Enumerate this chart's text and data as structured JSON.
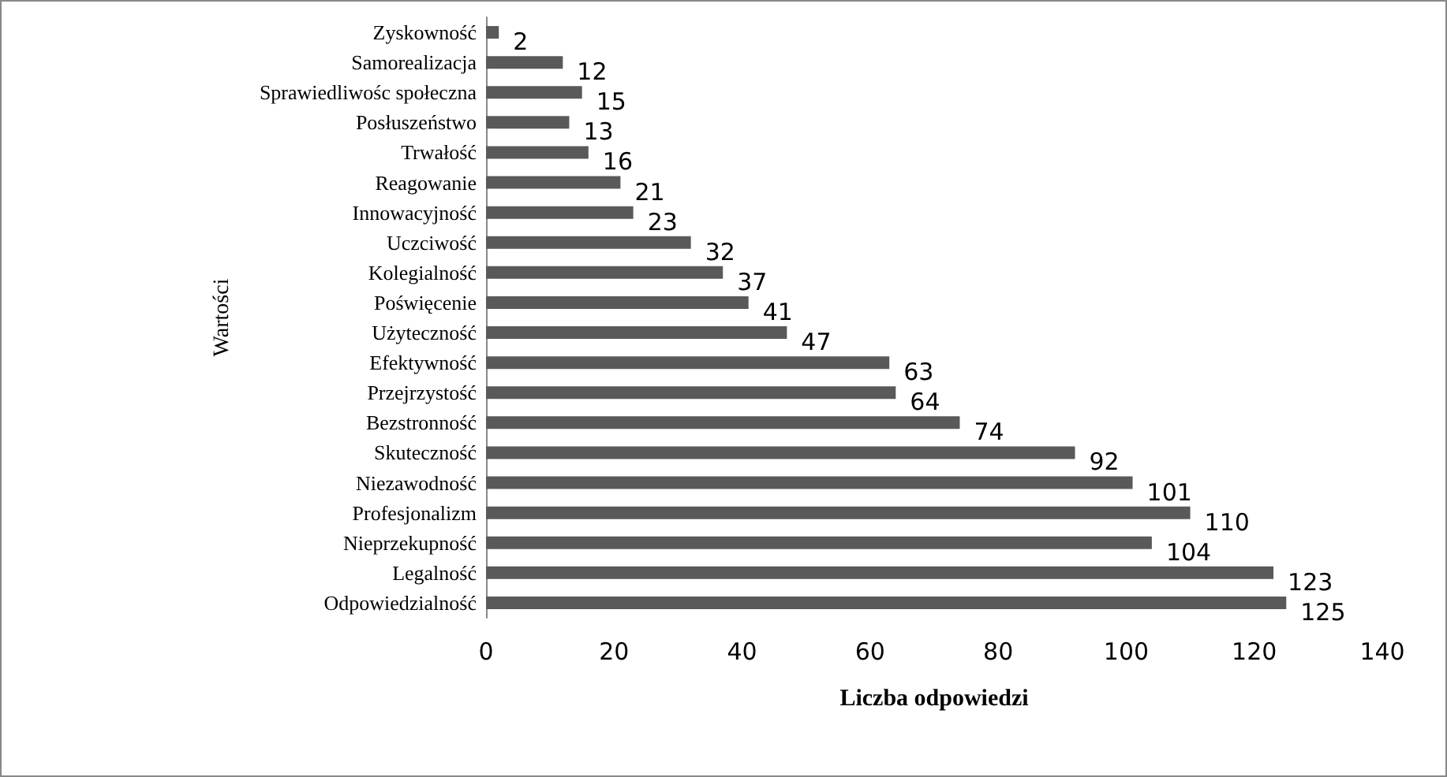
{
  "chart_data": {
    "type": "bar",
    "orientation": "horizontal",
    "xlabel": "Liczba odpowiedzi",
    "ylabel": "Wartości",
    "categories": [
      "Zyskowność",
      "Samorealizacja",
      "Sprawiedliwośc społeczna",
      "Posłuszeństwo",
      "Trwałość",
      "Reagowanie",
      "Innowacyjność",
      "Uczciwość",
      "Kolegialność",
      "Poświęcenie",
      "Użyteczność",
      "Efektywność",
      "Przejrzystość",
      "Bezstronność",
      "Skuteczność",
      "Niezawodność",
      "Profesjonalizm",
      "Nieprzekupność",
      "Legalność",
      "Odpowiedzialność"
    ],
    "values": [
      2,
      12,
      15,
      13,
      16,
      21,
      23,
      32,
      37,
      41,
      47,
      63,
      64,
      74,
      92,
      101,
      110,
      104,
      123,
      125
    ],
    "color": "#595959",
    "xlim": [
      0,
      140
    ],
    "xticks": [
      0,
      20,
      40,
      60,
      80,
      100,
      120,
      140
    ],
    "grid": false,
    "data_labels": true
  }
}
